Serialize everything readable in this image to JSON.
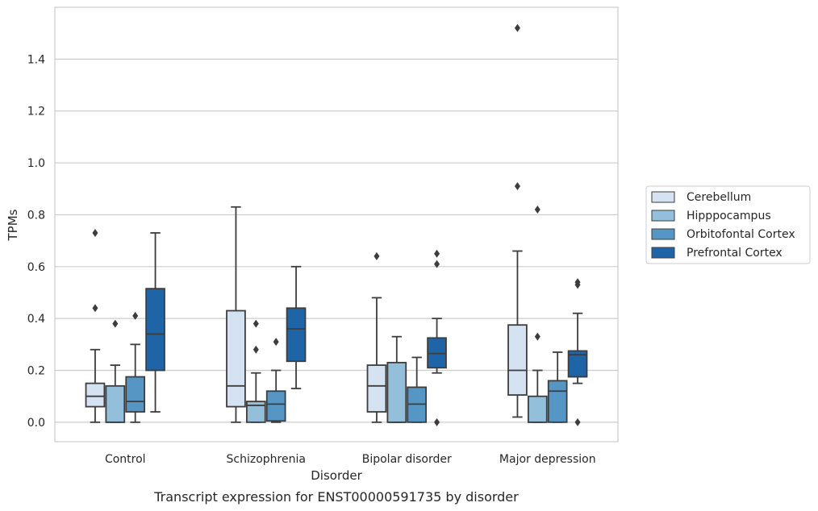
{
  "chart_data": {
    "type": "box",
    "title": "",
    "caption": "Transcript expression for ENST00000591735 by disorder",
    "xlabel": "Disorder",
    "ylabel": "TPMs",
    "ylim": [
      -0.075,
      1.6
    ],
    "yticks": [
      0.0,
      0.2,
      0.4,
      0.6,
      0.8,
      1.0,
      1.2,
      1.4
    ],
    "ytick_labels": [
      "0.0",
      "0.2",
      "0.4",
      "0.6",
      "0.8",
      "1.0",
      "1.2",
      "1.4"
    ],
    "grid": "horizontal",
    "legend_position": "right",
    "categories": [
      "Control",
      "Schizophrenia",
      "Bipolar disorder",
      "Major depression"
    ],
    "series": [
      {
        "name": "Cerebellum",
        "color": "#d4e2f1",
        "boxes": [
          {
            "whisker_low": 0.0,
            "q1": 0.06,
            "median": 0.1,
            "q3": 0.15,
            "whisker_high": 0.28,
            "outliers": [
              0.44,
              0.73
            ]
          },
          {
            "whisker_low": 0.0,
            "q1": 0.06,
            "median": 0.14,
            "q3": 0.43,
            "whisker_high": 0.83,
            "outliers": []
          },
          {
            "whisker_low": 0.0,
            "q1": 0.04,
            "median": 0.14,
            "q3": 0.22,
            "whisker_high": 0.48,
            "outliers": [
              0.64
            ]
          },
          {
            "whisker_low": 0.02,
            "q1": 0.105,
            "median": 0.2,
            "q3": 0.375,
            "whisker_high": 0.66,
            "outliers": [
              0.91,
              1.52
            ]
          }
        ]
      },
      {
        "name": "Hipppocampus",
        "color": "#94bfdb",
        "boxes": [
          {
            "whisker_low": 0.0,
            "q1": 0.0,
            "median": 0.0,
            "q3": 0.14,
            "whisker_high": 0.22,
            "outliers": [
              0.38
            ]
          },
          {
            "whisker_low": 0.0,
            "q1": 0.0,
            "median": 0.065,
            "q3": 0.08,
            "whisker_high": 0.19,
            "outliers": [
              0.28,
              0.38
            ]
          },
          {
            "whisker_low": 0.0,
            "q1": 0.0,
            "median": 0.0,
            "q3": 0.23,
            "whisker_high": 0.33,
            "outliers": []
          },
          {
            "whisker_low": 0.0,
            "q1": 0.0,
            "median": 0.0,
            "q3": 0.1,
            "whisker_high": 0.2,
            "outliers": [
              0.33,
              0.82
            ]
          }
        ]
      },
      {
        "name": "Orbitofontal Cortex",
        "color": "#5596c5",
        "boxes": [
          {
            "whisker_low": 0.0,
            "q1": 0.04,
            "median": 0.08,
            "q3": 0.175,
            "whisker_high": 0.3,
            "outliers": [
              0.41
            ]
          },
          {
            "whisker_low": 0.0,
            "q1": 0.005,
            "median": 0.07,
            "q3": 0.12,
            "whisker_high": 0.2,
            "outliers": [
              0.31
            ]
          },
          {
            "whisker_low": 0.0,
            "q1": 0.0,
            "median": 0.07,
            "q3": 0.135,
            "whisker_high": 0.25,
            "outliers": []
          },
          {
            "whisker_low": 0.0,
            "q1": 0.0,
            "median": 0.12,
            "q3": 0.16,
            "whisker_high": 0.27,
            "outliers": []
          }
        ]
      },
      {
        "name": "Prefrontal Cortex",
        "color": "#2064a8",
        "boxes": [
          {
            "whisker_low": 0.04,
            "q1": 0.2,
            "median": 0.34,
            "q3": 0.515,
            "whisker_high": 0.73,
            "outliers": []
          },
          {
            "whisker_low": 0.13,
            "q1": 0.235,
            "median": 0.36,
            "q3": 0.44,
            "whisker_high": 0.6,
            "outliers": []
          },
          {
            "whisker_low": 0.19,
            "q1": 0.21,
            "median": 0.265,
            "q3": 0.325,
            "whisker_high": 0.4,
            "outliers": [
              0.0,
              0.61,
              0.65
            ]
          },
          {
            "whisker_low": 0.15,
            "q1": 0.175,
            "median": 0.26,
            "q3": 0.275,
            "whisker_high": 0.42,
            "outliers": [
              0.0,
              0.53,
              0.54
            ]
          }
        ]
      }
    ]
  }
}
